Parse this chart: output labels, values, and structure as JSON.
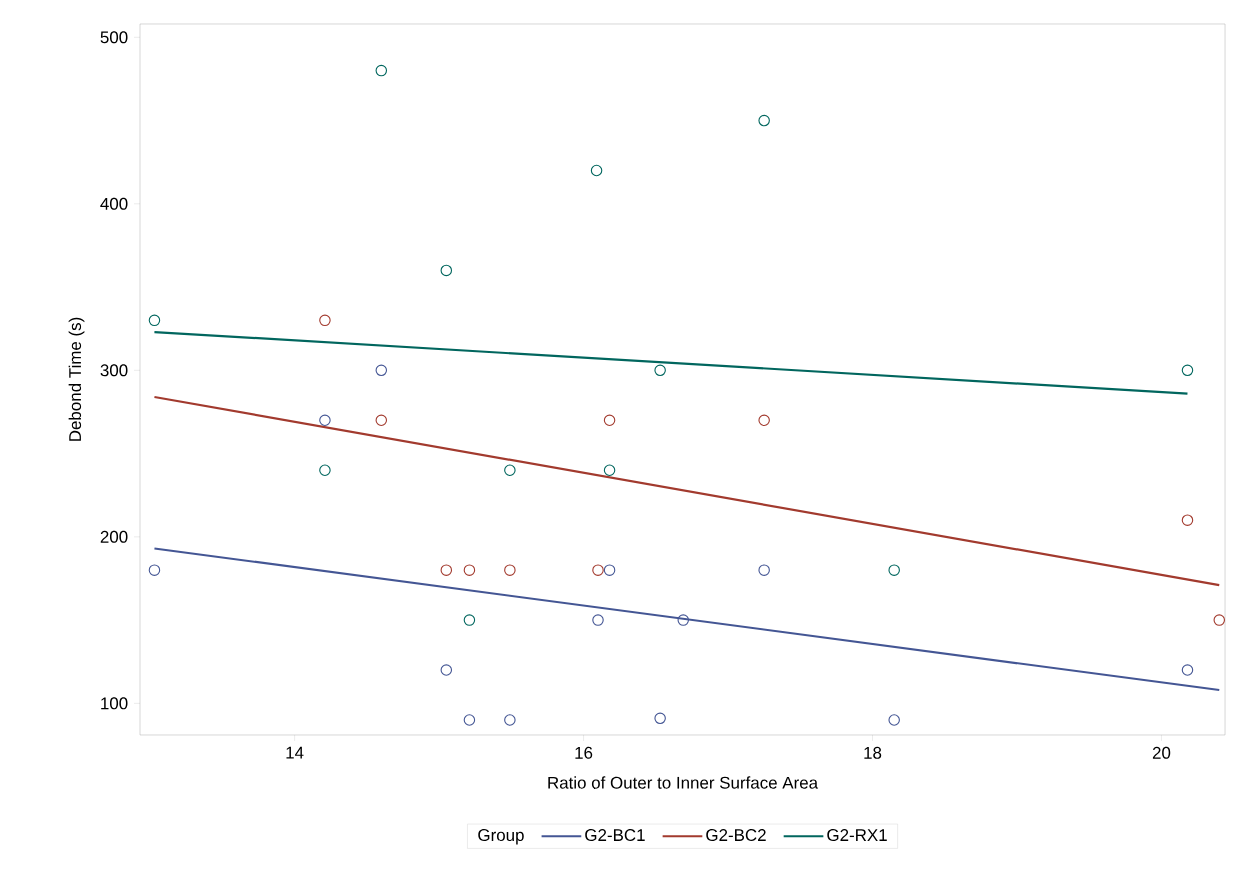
{
  "chart_data": {
    "type": "scatter",
    "xlabel": "Ratio of Outer to Inner Surface Area",
    "ylabel": "Debond Time (s)",
    "legend_title": "Group",
    "legend": "bottom",
    "grid": false,
    "xlim": [
      12.93,
      20.44
    ],
    "ylim": [
      81,
      508
    ],
    "xticks": [
      14,
      16,
      18,
      20
    ],
    "yticks": [
      100,
      200,
      300,
      400,
      500
    ],
    "series": [
      {
        "marker": "circle",
        "color": "#445694",
        "x": [
          13.03,
          14.21,
          14.6,
          15.05,
          15.21,
          15.49,
          16.53,
          16.1,
          16.18,
          16.69,
          17.25,
          18.15,
          20.18
        ],
        "values": [
          180,
          270,
          300,
          120,
          90,
          90,
          91,
          150,
          180,
          150,
          180,
          90,
          120
        ]
      },
      {
        "marker": "circle",
        "color": "#A23A2E",
        "x": [
          14.21,
          14.6,
          16.18,
          17.25,
          15.05,
          15.21,
          15.49,
          16.1,
          20.18,
          20.4
        ],
        "values": [
          330,
          270,
          270,
          270,
          180,
          180,
          180,
          180,
          210,
          150
        ]
      },
      {
        "marker": "circle",
        "color": "#01665E",
        "x": [
          13.03,
          14.6,
          15.05,
          16.09,
          16.53,
          17.25,
          20.18,
          14.21,
          15.49,
          16.18,
          15.21,
          18.15
        ],
        "values": [
          330,
          480,
          360,
          420,
          300,
          450,
          300,
          240,
          240,
          240,
          150,
          180
        ]
      },
      {
        "type": "line",
        "marker": "none",
        "name": "G2-BC1",
        "color": "#445694",
        "x": [
          13.03,
          20.4
        ],
        "values": [
          193,
          108
        ]
      },
      {
        "type": "line",
        "marker": "none",
        "name": "G2-BC2",
        "color": "#A23A2E",
        "x": [
          13.03,
          20.4
        ],
        "values": [
          284,
          171
        ]
      },
      {
        "type": "line",
        "marker": "none",
        "name": "G2-RX1",
        "color": "#01665E",
        "x": [
          13.03,
          20.18
        ],
        "values": [
          323,
          286
        ]
      }
    ]
  }
}
